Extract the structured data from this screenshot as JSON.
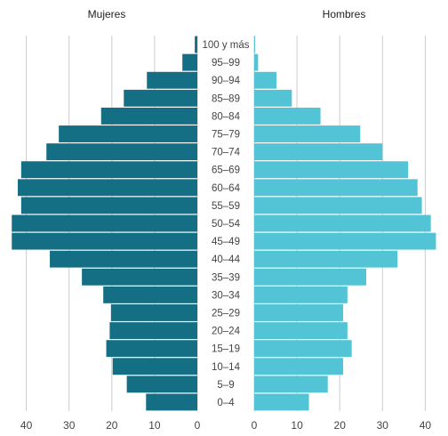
{
  "chart_data": {
    "type": "bar",
    "orientation": "horizontal",
    "panels": [
      {
        "name": "Mujeres",
        "side": "left",
        "color": "#156f84"
      },
      {
        "name": "Hombres",
        "side": "right",
        "color": "#52c4d5"
      }
    ],
    "categories": [
      "100 y más",
      "95–99",
      "90–94",
      "85–89",
      "80–84",
      "75–79",
      "70–74",
      "65–69",
      "60–64",
      "55–59",
      "50–54",
      "45–49",
      "40–44",
      "35–39",
      "30–34",
      "25–29",
      "20–24",
      "15–19",
      "10–14",
      "5–9",
      "0–4"
    ],
    "series": [
      {
        "name": "Mujeres",
        "values": [
          0.6,
          3.5,
          11.8,
          17.2,
          22.5,
          32.4,
          35.3,
          41.2,
          42.0,
          41.2,
          43.4,
          43.4,
          34.5,
          27.0,
          22.0,
          20.2,
          20.5,
          21.3,
          19.8,
          16.5,
          12.0
        ]
      },
      {
        "name": "Hombres",
        "values": [
          0.2,
          0.9,
          5.2,
          8.8,
          15.5,
          24.8,
          30.0,
          36.0,
          38.2,
          39.2,
          41.3,
          42.5,
          33.5,
          26.2,
          21.8,
          20.8,
          21.8,
          22.8,
          20.8,
          17.2,
          12.8
        ]
      }
    ],
    "x_ticks": [
      0,
      10,
      20,
      30,
      40
    ],
    "xlim": [
      0,
      43
    ],
    "grid": true,
    "title": "",
    "xlabel": "",
    "ylabel": ""
  }
}
